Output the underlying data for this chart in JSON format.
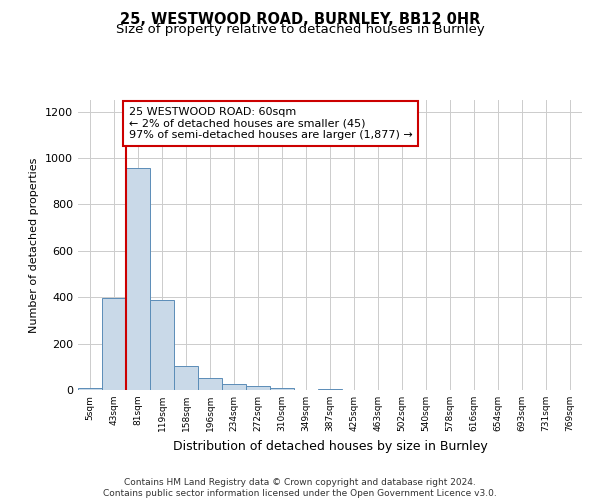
{
  "title_line1": "25, WESTWOOD ROAD, BURNLEY, BB12 0HR",
  "title_line2": "Size of property relative to detached houses in Burnley",
  "xlabel": "Distribution of detached houses by size in Burnley",
  "ylabel": "Number of detached properties",
  "footnote": "Contains HM Land Registry data © Crown copyright and database right 2024.\nContains public sector information licensed under the Open Government Licence v3.0.",
  "bar_labels": [
    "5sqm",
    "43sqm",
    "81sqm",
    "119sqm",
    "158sqm",
    "196sqm",
    "234sqm",
    "272sqm",
    "310sqm",
    "349sqm",
    "387sqm",
    "425sqm",
    "463sqm",
    "502sqm",
    "540sqm",
    "578sqm",
    "616sqm",
    "654sqm",
    "693sqm",
    "731sqm",
    "769sqm"
  ],
  "bar_values": [
    10,
    395,
    955,
    390,
    103,
    50,
    25,
    18,
    10,
    0,
    5,
    0,
    0,
    0,
    0,
    0,
    0,
    0,
    0,
    0,
    0
  ],
  "bar_color": "#c9d9e8",
  "bar_edge_color": "#5b8db8",
  "ylim": [
    0,
    1250
  ],
  "yticks": [
    0,
    200,
    400,
    600,
    800,
    1000,
    1200
  ],
  "property_line_x": 1.5,
  "annotation_text": "25 WESTWOOD ROAD: 60sqm\n← 2% of detached houses are smaller (45)\n97% of semi-detached houses are larger (1,877) →",
  "annotation_box_color": "#ffffff",
  "annotation_box_edge": "#cc0000",
  "line_color": "#cc0000",
  "title_fontsize": 10.5,
  "subtitle_fontsize": 9.5,
  "annotation_fontsize": 8.0,
  "footnote_fontsize": 6.5
}
